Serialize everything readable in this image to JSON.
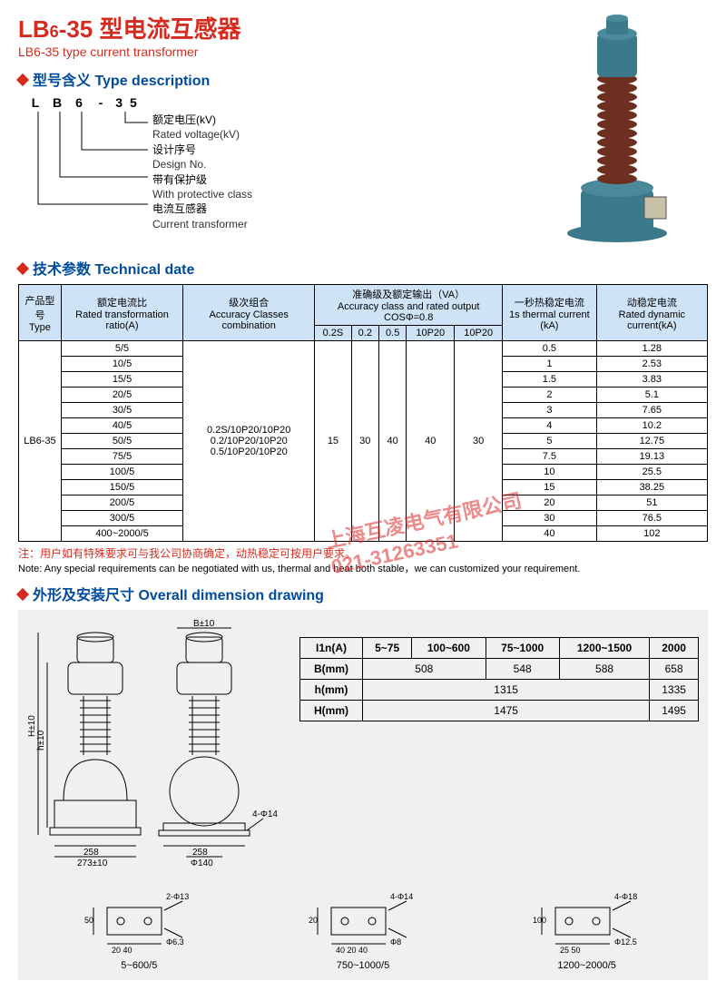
{
  "header": {
    "title_cn_main": "LB",
    "title_cn_sub": "6",
    "title_cn_suffix": "-35 型电流互感器",
    "title_en": "LB6-35 type current transformer"
  },
  "type_desc": {
    "heading": "型号含义 Type description",
    "model": [
      "L",
      "B",
      "6",
      "-",
      "3 5"
    ],
    "items": [
      {
        "cn": "额定电压(kV)",
        "en": "Rated voltage(kV)"
      },
      {
        "cn": "设计序号",
        "en": "Design No."
      },
      {
        "cn": "带有保护级",
        "en": "With protective class"
      },
      {
        "cn": "电流互感器",
        "en": "Current transformer"
      }
    ]
  },
  "tech": {
    "heading": "技术参数 Technical date",
    "headers": {
      "type_cn": "产品型号",
      "type_en": "Type",
      "ratio_cn": "额定电流比",
      "ratio_en": "Rated transformation ratio(A)",
      "classes_cn": "级次组合",
      "classes_en": "Accuracy Classes combination",
      "output_cn": "准确级及额定输出（VA）",
      "output_en": "Accuracy class and rated output COSΦ=0.8",
      "thermal_cn": "一秒热稳定电流",
      "thermal_en": "1s thermal current (kA)",
      "dynamic_cn": "动稳定电流",
      "dynamic_en": "Rated dynamic current(kA)",
      "sub": [
        "0.2S",
        "0.2",
        "0.5",
        "10P20",
        "10P20"
      ]
    },
    "type_value": "LB6-35",
    "classes_value": [
      "0.2S/10P20/10P20",
      "0.2/10P20/10P20",
      "0.5/10P20/10P20"
    ],
    "va_values": [
      "15",
      "30",
      "40",
      "40",
      "30"
    ],
    "rows": [
      {
        "ratio": "5/5",
        "thermal": "0.5",
        "dynamic": "1.28"
      },
      {
        "ratio": "10/5",
        "thermal": "1",
        "dynamic": "2.53"
      },
      {
        "ratio": "15/5",
        "thermal": "1.5",
        "dynamic": "3.83"
      },
      {
        "ratio": "20/5",
        "thermal": "2",
        "dynamic": "5.1"
      },
      {
        "ratio": "30/5",
        "thermal": "3",
        "dynamic": "7.65"
      },
      {
        "ratio": "40/5",
        "thermal": "4",
        "dynamic": "10.2"
      },
      {
        "ratio": "50/5",
        "thermal": "5",
        "dynamic": "12.75"
      },
      {
        "ratio": "75/5",
        "thermal": "7.5",
        "dynamic": "19.13"
      },
      {
        "ratio": "100/5",
        "thermal": "10",
        "dynamic": "25.5"
      },
      {
        "ratio": "150/5",
        "thermal": "15",
        "dynamic": "38.25"
      },
      {
        "ratio": "200/5",
        "thermal": "20",
        "dynamic": "51"
      },
      {
        "ratio": "300/5",
        "thermal": "30",
        "dynamic": "76.5"
      },
      {
        "ratio": "400~2000/5",
        "thermal": "40",
        "dynamic": "102"
      }
    ],
    "note_cn": "注：用户如有特殊要求可与我公司协商确定，动热稳定可按用户要求。",
    "note_en": "Note: Any special requirements can be negotiated with us, thermal and heat both stable，we can customized your requirement."
  },
  "dimension": {
    "heading": "外形及安装尺寸 Overall dimension drawing",
    "drawing_labels": {
      "B": "B±10",
      "H": "H±10",
      "h": "h±10",
      "w258": "258",
      "w273": "273±10",
      "phi140": "Φ140",
      "phi14": "4-Φ14"
    },
    "table": {
      "headers": [
        "I1n(A)",
        "5~75",
        "100~600",
        "75~1000",
        "1200~1500",
        "2000"
      ],
      "rows": [
        {
          "label": "B(mm)",
          "cells": [
            {
              "v": "508",
              "span": 2
            },
            {
              "v": "548",
              "span": 1
            },
            {
              "v": "588",
              "span": 1
            },
            {
              "v": "658",
              "span": 1
            }
          ]
        },
        {
          "label": "h(mm)",
          "cells": [
            {
              "v": "1315",
              "span": 4
            },
            {
              "v": "1335",
              "span": 1
            }
          ]
        },
        {
          "label": "H(mm)",
          "cells": [
            {
              "v": "1475",
              "span": 4
            },
            {
              "v": "1495",
              "span": 1
            }
          ]
        }
      ]
    },
    "terminals": [
      {
        "label": "5~600/5",
        "phi_top": "2-Φ13",
        "phi_bot": "Φ6.3",
        "dims": [
          "50",
          "20",
          "40"
        ]
      },
      {
        "label": "750~1000/5",
        "phi_top": "4-Φ14",
        "phi_bot": "Φ8",
        "dims": [
          "20",
          "40",
          "20",
          "40"
        ]
      },
      {
        "label": "1200~2000/5",
        "phi_top": "4-Φ18",
        "phi_bot": "Φ12.5",
        "dims": [
          "100",
          "25",
          "50"
        ]
      }
    ]
  },
  "watermark": {
    "line1": "上海互凌电气有限公司",
    "line2": "021-31263351"
  },
  "colors": {
    "red": "#d52b1e",
    "blue": "#004b9b",
    "th_bg": "#cfe3f7",
    "dim_bg": "#f0f0f0"
  }
}
